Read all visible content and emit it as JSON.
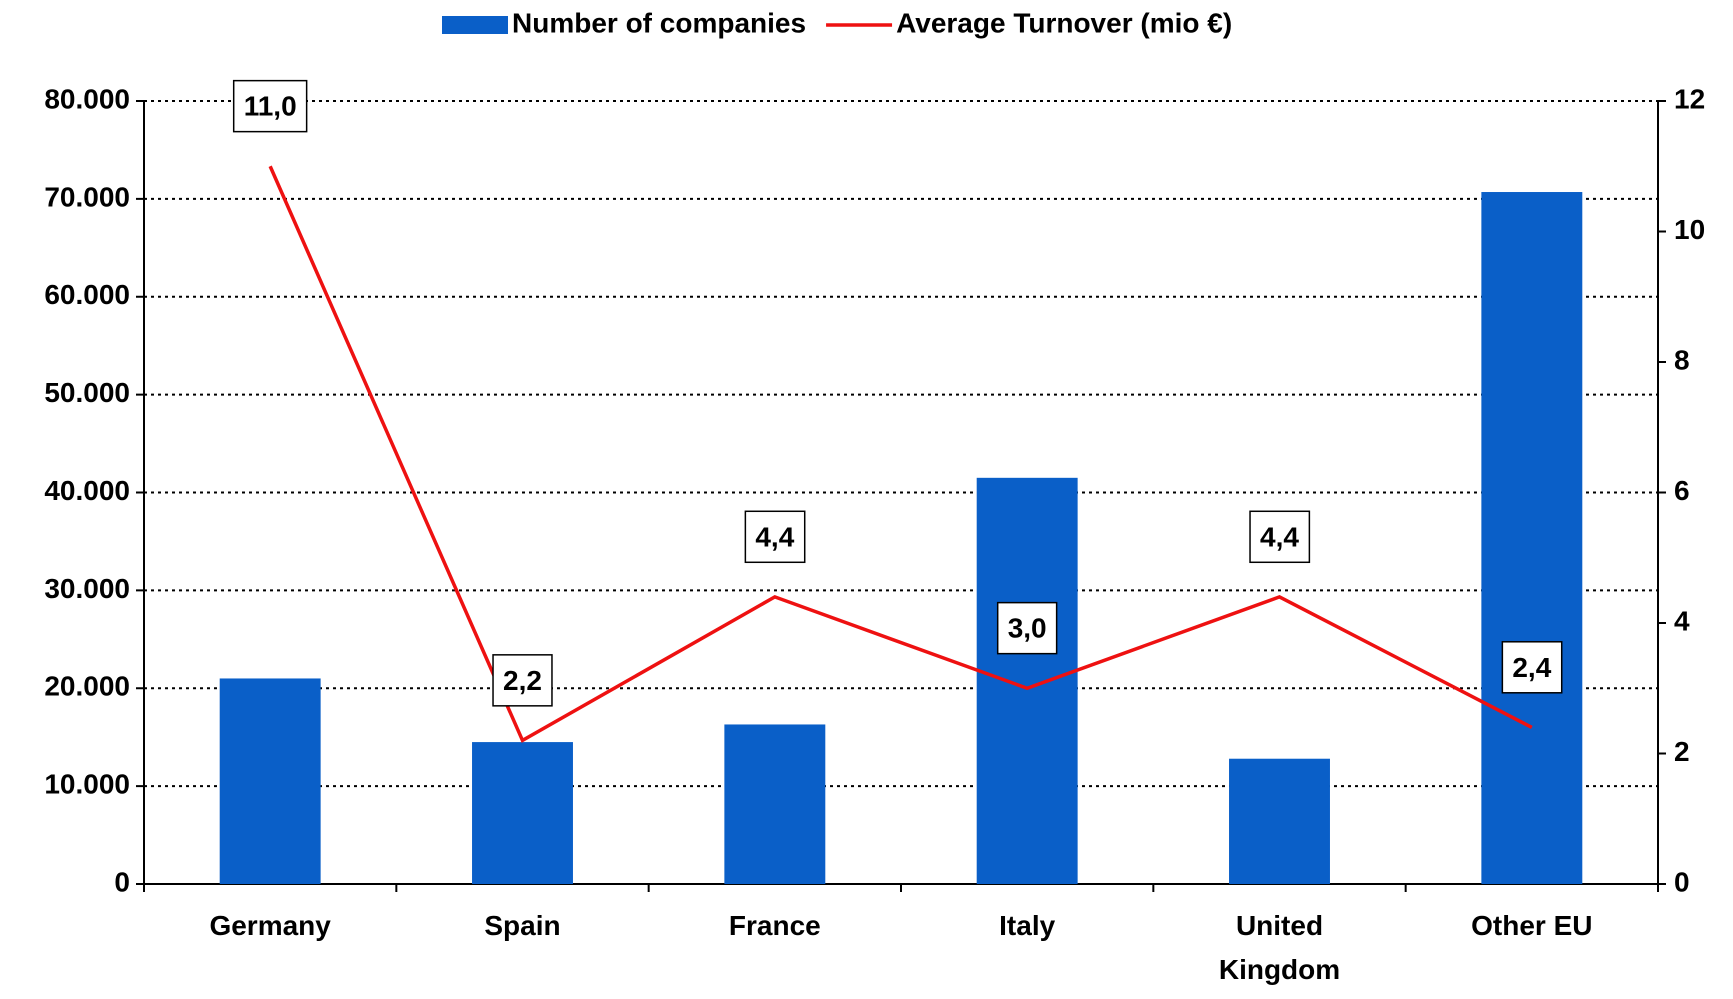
{
  "chart_data": {
    "type": "bar-line",
    "categories": [
      "Germany",
      "Spain",
      "France",
      "Italy",
      "United Kingdom",
      "Other EU"
    ],
    "series": [
      {
        "name": "Number of companies",
        "type": "bar",
        "color": "#0a5fc8",
        "values": [
          21000,
          14500,
          16300,
          41500,
          12800,
          70700
        ]
      },
      {
        "name": "Average Turnover (mio €)",
        "type": "line",
        "axis": "y2",
        "color": "#ee1111",
        "values": [
          11.0,
          2.2,
          4.4,
          3.0,
          4.4,
          2.4
        ],
        "value_labels": [
          "11,0",
          "2,2",
          "4,4",
          "3,0",
          "4,4",
          "2,4"
        ]
      }
    ],
    "ylim": [
      0,
      80000
    ],
    "yticks": [
      {
        "value": 0,
        "label": "0"
      },
      {
        "value": 10000,
        "label": "10.000"
      },
      {
        "value": 20000,
        "label": "20.000"
      },
      {
        "value": 30000,
        "label": "30.000"
      },
      {
        "value": 40000,
        "label": "40.000"
      },
      {
        "value": 50000,
        "label": "50.000"
      },
      {
        "value": 60000,
        "label": "60.000"
      },
      {
        "value": 70000,
        "label": "70.000"
      },
      {
        "value": 80000,
        "label": "80.000"
      }
    ],
    "y2lim": [
      0,
      12
    ],
    "y2ticks": [
      0,
      2,
      4,
      6,
      8,
      10,
      12
    ],
    "grid": true,
    "legend": "top"
  }
}
